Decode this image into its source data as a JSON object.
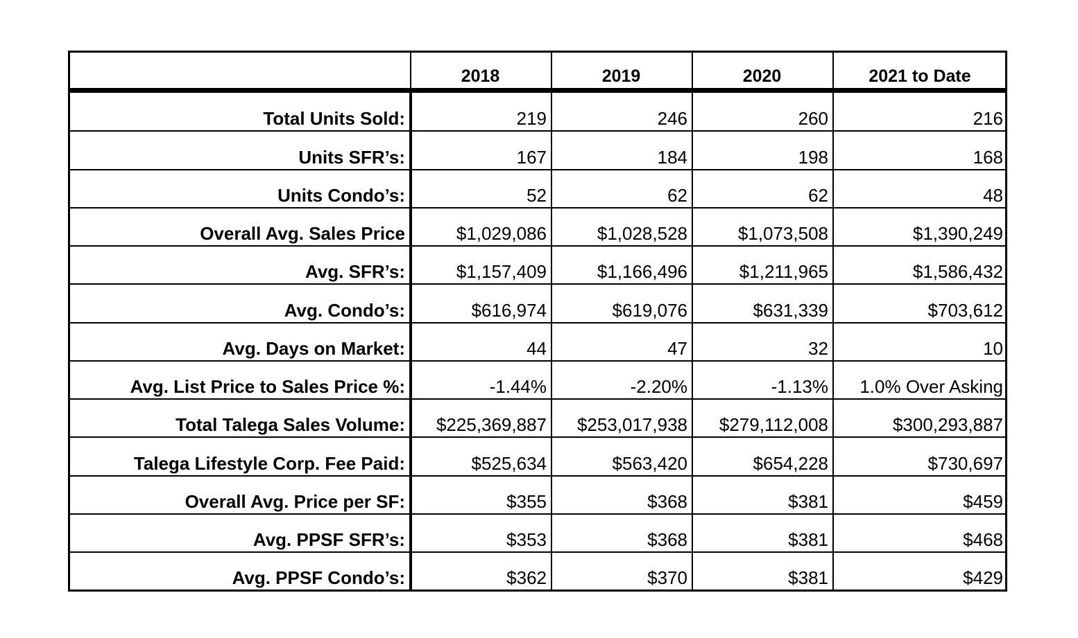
{
  "header": {
    "corner": "",
    "years": [
      "2018",
      "2019",
      "2020",
      "2021 to Date"
    ]
  },
  "rows": [
    {
      "label": "Total Units Sold:",
      "values": [
        "219",
        "246",
        "260",
        "216"
      ]
    },
    {
      "label": "Units SFR’s:",
      "values": [
        "167",
        "184",
        "198",
        "168"
      ]
    },
    {
      "label": "Units Condo’s:",
      "values": [
        "52",
        "62",
        "62",
        "48"
      ]
    },
    {
      "label": "Overall Avg. Sales Price",
      "values": [
        "$1,029,086",
        "$1,028,528",
        "$1,073,508",
        "$1,390,249"
      ]
    },
    {
      "label": "Avg. SFR’s:",
      "values": [
        "$1,157,409",
        "$1,166,496",
        "$1,211,965",
        "$1,586,432"
      ]
    },
    {
      "label": "Avg. Condo’s:",
      "values": [
        "$616,974",
        "$619,076",
        "$631,339",
        "$703,612"
      ]
    },
    {
      "label": "Avg. Days on Market:",
      "values": [
        "44",
        "47",
        "32",
        "10"
      ]
    },
    {
      "label": "Avg. List Price to Sales Price %:",
      "values": [
        "-1.44%",
        "-2.20%",
        "-1.13%",
        "1.0% Over Asking"
      ]
    },
    {
      "label": "Total Talega Sales Volume:",
      "values": [
        "$225,369,887",
        "$253,017,938",
        "$279,112,008",
        "$300,293,887"
      ]
    },
    {
      "label": "Talega Lifestyle Corp. Fee Paid:",
      "values": [
        "$525,634",
        "$563,420",
        "$654,228",
        "$730,697"
      ]
    },
    {
      "label": "Overall Avg. Price per SF:",
      "values": [
        "$355",
        "$368",
        "$381",
        "$459"
      ]
    },
    {
      "label": "Avg. PPSF SFR’s:",
      "values": [
        "$353",
        "$368",
        "$381",
        "$468"
      ]
    },
    {
      "label": "Avg. PPSF Condo’s:",
      "values": [
        "$362",
        "$370",
        "$381",
        "$429"
      ]
    }
  ]
}
